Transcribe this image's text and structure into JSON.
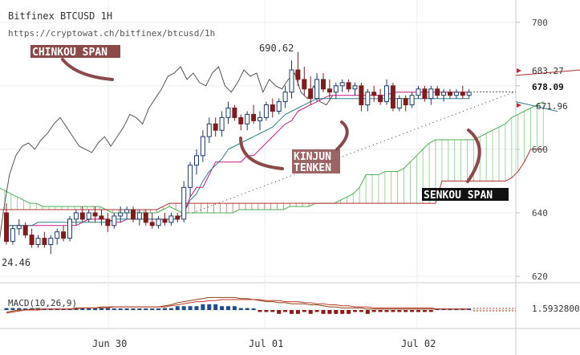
{
  "header": {
    "title": "Bitfinex BTCUSD 1H",
    "url": "https://cryptowat.ch/bitfinex/btcusd/1h"
  },
  "annotations": {
    "chikou": "CHINKOU SPAN",
    "kinjun_line1": "KINJUN",
    "kinjun_line2": "TENKEN",
    "senkou": "SENKOU SPAN",
    "peak_label": "690.62",
    "low_label": "24.46"
  },
  "price_tags": {
    "upper": "683.27",
    "current": "678.09",
    "lower": "671.96"
  },
  "macd": {
    "label": "MACD(10,26,9)",
    "value": "1.5932800"
  },
  "colors": {
    "up_candle": "#1b3a6b",
    "down_candle": "#7a1e1e",
    "chikou": "#555555",
    "tenkan": "#c71585",
    "kijun": "#2e7d8c",
    "senkou_a": "#4caf50",
    "senkou_b": "#b03030",
    "macd_line": "#8b4513",
    "signal_line": "#c0392b",
    "hist_up": "#1f4e8c",
    "hist_down": "#8b1a1a",
    "annotation_bg": "#8b4a4a"
  },
  "chart_data": {
    "type": "candlestick",
    "title": "Bitfinex BTCUSD 1H",
    "xlabel": "",
    "ylabel": "",
    "ylim": [
      619,
      705
    ],
    "yticks": [
      620,
      640,
      660,
      680,
      700
    ],
    "x_tick_labels": [
      "Jun 30",
      "Jul 01",
      "Jul 02"
    ],
    "candles": [
      {
        "o": 640,
        "h": 643,
        "l": 630,
        "c": 631
      },
      {
        "o": 631,
        "h": 636,
        "l": 630,
        "c": 635
      },
      {
        "o": 635,
        "h": 638,
        "l": 633,
        "c": 636
      },
      {
        "o": 636,
        "h": 637,
        "l": 632,
        "c": 633
      },
      {
        "o": 633,
        "h": 635,
        "l": 629,
        "c": 630
      },
      {
        "o": 630,
        "h": 633,
        "l": 629,
        "c": 632
      },
      {
        "o": 632,
        "h": 634,
        "l": 629,
        "c": 630
      },
      {
        "o": 630,
        "h": 633,
        "l": 627,
        "c": 632
      },
      {
        "o": 632,
        "h": 635,
        "l": 630,
        "c": 634
      },
      {
        "o": 634,
        "h": 636,
        "l": 631,
        "c": 632
      },
      {
        "o": 632,
        "h": 639,
        "l": 631,
        "c": 638
      },
      {
        "o": 638,
        "h": 641,
        "l": 636,
        "c": 640
      },
      {
        "o": 640,
        "h": 642,
        "l": 637,
        "c": 638
      },
      {
        "o": 638,
        "h": 641,
        "l": 637,
        "c": 640
      },
      {
        "o": 640,
        "h": 642,
        "l": 637,
        "c": 639
      },
      {
        "o": 639,
        "h": 641,
        "l": 636,
        "c": 638
      },
      {
        "o": 638,
        "h": 640,
        "l": 634,
        "c": 636
      },
      {
        "o": 636,
        "h": 640,
        "l": 635,
        "c": 639
      },
      {
        "o": 639,
        "h": 642,
        "l": 637,
        "c": 640
      },
      {
        "o": 640,
        "h": 642,
        "l": 638,
        "c": 641
      },
      {
        "o": 641,
        "h": 642,
        "l": 637,
        "c": 638
      },
      {
        "o": 638,
        "h": 641,
        "l": 636,
        "c": 640
      },
      {
        "o": 640,
        "h": 641,
        "l": 636,
        "c": 637
      },
      {
        "o": 637,
        "h": 640,
        "l": 635,
        "c": 636
      },
      {
        "o": 636,
        "h": 639,
        "l": 635,
        "c": 638
      },
      {
        "o": 638,
        "h": 640,
        "l": 636,
        "c": 637
      },
      {
        "o": 637,
        "h": 640,
        "l": 636,
        "c": 639
      },
      {
        "o": 639,
        "h": 640,
        "l": 637,
        "c": 638
      },
      {
        "o": 638,
        "h": 650,
        "l": 637,
        "c": 648
      },
      {
        "o": 648,
        "h": 656,
        "l": 645,
        "c": 655
      },
      {
        "o": 655,
        "h": 660,
        "l": 652,
        "c": 658
      },
      {
        "o": 658,
        "h": 666,
        "l": 656,
        "c": 664
      },
      {
        "o": 664,
        "h": 670,
        "l": 662,
        "c": 668
      },
      {
        "o": 668,
        "h": 670,
        "l": 664,
        "c": 666
      },
      {
        "o": 666,
        "h": 672,
        "l": 664,
        "c": 670
      },
      {
        "o": 670,
        "h": 675,
        "l": 668,
        "c": 673
      },
      {
        "o": 673,
        "h": 674,
        "l": 669,
        "c": 670
      },
      {
        "o": 670,
        "h": 671,
        "l": 666,
        "c": 668
      },
      {
        "o": 668,
        "h": 672,
        "l": 666,
        "c": 671
      },
      {
        "o": 671,
        "h": 674,
        "l": 668,
        "c": 669
      },
      {
        "o": 669,
        "h": 672,
        "l": 666,
        "c": 670
      },
      {
        "o": 670,
        "h": 675,
        "l": 669,
        "c": 674
      },
      {
        "o": 674,
        "h": 676,
        "l": 670,
        "c": 672
      },
      {
        "o": 672,
        "h": 676,
        "l": 671,
        "c": 675
      },
      {
        "o": 675,
        "h": 680,
        "l": 673,
        "c": 678
      },
      {
        "o": 678,
        "h": 688,
        "l": 676,
        "c": 685
      },
      {
        "o": 685,
        "h": 690.6,
        "l": 680,
        "c": 682
      },
      {
        "o": 682,
        "h": 686,
        "l": 677,
        "c": 679
      },
      {
        "o": 679,
        "h": 683,
        "l": 674,
        "c": 676
      },
      {
        "o": 676,
        "h": 684,
        "l": 675,
        "c": 682
      },
      {
        "o": 682,
        "h": 684,
        "l": 678,
        "c": 679
      },
      {
        "o": 679,
        "h": 682,
        "l": 676,
        "c": 678
      },
      {
        "o": 678,
        "h": 681,
        "l": 676,
        "c": 680
      },
      {
        "o": 680,
        "h": 682,
        "l": 678,
        "c": 681
      },
      {
        "o": 681,
        "h": 682,
        "l": 678,
        "c": 679
      },
      {
        "o": 679,
        "h": 681,
        "l": 677,
        "c": 680
      },
      {
        "o": 680,
        "h": 681,
        "l": 672,
        "c": 674
      },
      {
        "o": 674,
        "h": 679,
        "l": 672,
        "c": 678
      },
      {
        "o": 678,
        "h": 680,
        "l": 675,
        "c": 677
      },
      {
        "o": 677,
        "h": 679,
        "l": 674,
        "c": 675
      },
      {
        "o": 675,
        "h": 682,
        "l": 674,
        "c": 680
      },
      {
        "o": 680,
        "h": 681,
        "l": 672,
        "c": 673
      },
      {
        "o": 673,
        "h": 677,
        "l": 672,
        "c": 676
      },
      {
        "o": 676,
        "h": 677,
        "l": 672,
        "c": 674
      },
      {
        "o": 674,
        "h": 678,
        "l": 673,
        "c": 677
      },
      {
        "o": 677,
        "h": 680,
        "l": 676,
        "c": 679
      },
      {
        "o": 679,
        "h": 680,
        "l": 675,
        "c": 676
      },
      {
        "o": 676,
        "h": 680,
        "l": 674,
        "c": 679
      },
      {
        "o": 679,
        "h": 680,
        "l": 676,
        "c": 677
      },
      {
        "o": 677,
        "h": 679,
        "l": 675,
        "c": 678
      },
      {
        "o": 678,
        "h": 679,
        "l": 676,
        "c": 677
      },
      {
        "o": 677,
        "h": 679,
        "l": 676,
        "c": 678
      },
      {
        "o": 678,
        "h": 680,
        "l": 676,
        "c": 677
      },
      {
        "o": 677,
        "h": 679,
        "l": 676,
        "c": 678
      }
    ],
    "chikou_span": [
      625,
      640,
      652,
      658,
      661,
      662,
      660,
      663,
      665,
      668,
      670,
      667,
      664,
      661,
      660,
      659,
      662,
      664,
      661,
      664,
      667,
      671,
      670,
      668,
      673,
      676,
      679,
      683,
      684,
      686,
      682,
      684,
      681,
      680,
      684,
      686,
      680,
      678,
      681,
      685,
      683,
      684,
      678,
      682,
      680,
      679,
      682,
      684,
      678,
      676,
      680,
      675,
      674,
      677
    ],
    "tenkan_sen": [
      636,
      636,
      636,
      636,
      636,
      636,
      636,
      636,
      636,
      636,
      636,
      636,
      637,
      638,
      638,
      638,
      638,
      637,
      637,
      638,
      638,
      638,
      638,
      638,
      638,
      638,
      638,
      638,
      640,
      645,
      648,
      648,
      652,
      656,
      656,
      656,
      656,
      656,
      658,
      658,
      660,
      662,
      664,
      666,
      668,
      669,
      672,
      673,
      674,
      675,
      676,
      677,
      677,
      677,
      677,
      677,
      677,
      677,
      677,
      677,
      677,
      678,
      678,
      678,
      678,
      678,
      678,
      678,
      678,
      678,
      678,
      678,
      678,
      678
    ],
    "kijun_sen": [
      636,
      636,
      636,
      636,
      636,
      637,
      637,
      637,
      637,
      637,
      637,
      637,
      637,
      637,
      637,
      637,
      637,
      638,
      638,
      638,
      638,
      638,
      638,
      638,
      638,
      638,
      638,
      638,
      640,
      644,
      646,
      650,
      653,
      655,
      657,
      660,
      661,
      662,
      663,
      664,
      665,
      666,
      667,
      669,
      671,
      672,
      673,
      674,
      675,
      676,
      676,
      676,
      676,
      676,
      676,
      676,
      676,
      676,
      676,
      676,
      676,
      676,
      676,
      676,
      676,
      676,
      676,
      676,
      676,
      676,
      676,
      676,
      676,
      676
    ],
    "senkou_span_a": [
      648,
      648,
      647,
      646,
      645,
      644,
      643,
      643,
      642,
      642,
      642,
      642,
      642,
      642,
      642,
      642,
      642,
      642,
      641,
      640,
      640,
      640,
      640,
      640,
      640,
      640,
      640,
      641,
      642,
      641,
      640,
      640,
      640,
      640,
      640,
      640,
      640,
      640,
      640,
      641,
      641,
      641,
      641,
      641,
      641,
      641,
      641,
      642,
      642,
      642,
      642,
      643,
      643,
      643,
      643,
      644,
      645,
      646,
      648,
      652,
      652,
      652,
      653,
      653,
      653,
      654,
      656,
      658,
      660,
      662,
      663,
      663,
      663,
      663,
      663,
      663,
      663,
      664,
      665,
      666,
      667,
      668,
      670,
      671,
      672,
      673,
      674,
      675
    ],
    "senkou_span_b": [
      641,
      641,
      641,
      641,
      641,
      641,
      641,
      641,
      641,
      641,
      641,
      641,
      641,
      641,
      641,
      641,
      641,
      641,
      641,
      641,
      641,
      641,
      641,
      641,
      641,
      641,
      641,
      642,
      643,
      643,
      643,
      643,
      643,
      643,
      643,
      643,
      643,
      643,
      643,
      643,
      643,
      643,
      643,
      643,
      643,
      643,
      643,
      643,
      643,
      643,
      643,
      643,
      643,
      643,
      643,
      643,
      643,
      643,
      643,
      643,
      643,
      643,
      643,
      643,
      643,
      643,
      643,
      643,
      643,
      643,
      643,
      650,
      650,
      650,
      650,
      650,
      650,
      650,
      650,
      650,
      650,
      650,
      651,
      653,
      656,
      660,
      660,
      660
    ],
    "macd": [
      -2,
      -1,
      0,
      0,
      1,
      1,
      1,
      1,
      1,
      1,
      1,
      2,
      2,
      2,
      2,
      3,
      3,
      3,
      3,
      3,
      3,
      3,
      3,
      3,
      3,
      4,
      5,
      7,
      8,
      9,
      10,
      11,
      12,
      12,
      12,
      12,
      12,
      11,
      11,
      10,
      9,
      8,
      8,
      7,
      7,
      6,
      6,
      6,
      5,
      5,
      4,
      3,
      3,
      2,
      2,
      2,
      2,
      1,
      1,
      1,
      1,
      1,
      1,
      1,
      1,
      1,
      1,
      1,
      1,
      1,
      1,
      1,
      1,
      1
    ],
    "signal": [
      -3,
      -2,
      -1,
      0,
      0,
      0,
      1,
      1,
      1,
      1,
      1,
      1,
      2,
      2,
      2,
      2,
      2,
      3,
      3,
      3,
      3,
      3,
      3,
      3,
      3,
      3,
      4,
      5,
      6,
      7,
      8,
      8,
      9,
      9,
      10,
      10,
      10,
      10,
      10,
      10,
      10,
      9,
      9,
      9,
      8,
      8,
      8,
      7,
      7,
      6,
      6,
      5,
      5,
      4,
      4,
      3,
      3,
      3,
      2,
      2,
      2,
      2,
      2,
      2,
      2,
      2,
      2,
      2,
      1,
      1,
      1,
      1,
      1,
      1
    ],
    "macd_histogram": [
      1,
      1,
      1,
      0,
      1,
      1,
      0,
      0,
      0,
      0,
      0,
      1,
      0,
      0,
      0,
      1,
      1,
      0,
      0,
      0,
      0,
      0,
      0,
      0,
      0,
      1,
      1,
      2,
      2,
      2,
      2,
      3,
      3,
      3,
      2,
      2,
      2,
      1,
      1,
      0,
      -1,
      -1,
      -1,
      -2,
      -1,
      -2,
      -2,
      -1,
      -2,
      -1,
      -2,
      -2,
      -2,
      -2,
      -2,
      -1,
      -1,
      -2,
      -1,
      -1,
      -1,
      -1,
      -1,
      -1,
      -1,
      -1,
      -1,
      -1,
      0,
      0,
      0,
      0,
      0,
      0
    ]
  }
}
